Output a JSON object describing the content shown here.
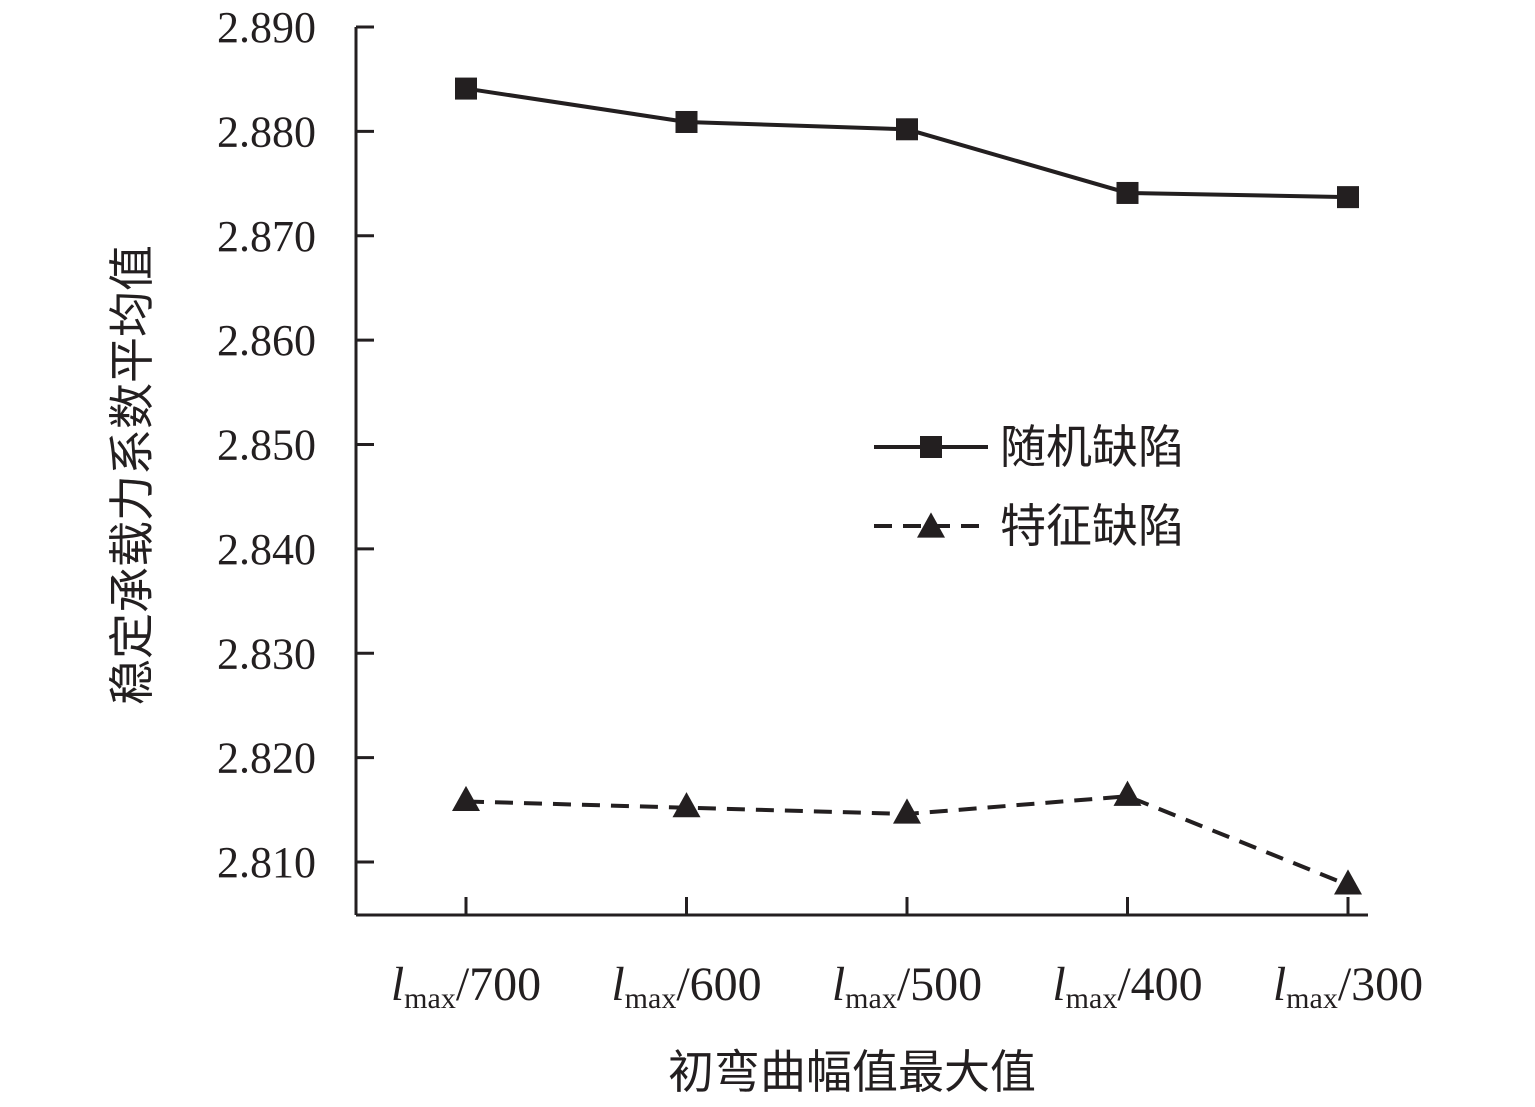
{
  "chart_data": {
    "type": "line",
    "title": "",
    "xlabel": "初弯曲幅值最大值",
    "ylabel": "稳定承载力系数平均值",
    "categories": [
      {
        "main": "l",
        "sub": "max",
        "tail": "/700"
      },
      {
        "main": "l",
        "sub": "max",
        "tail": "/600"
      },
      {
        "main": "l",
        "sub": "max",
        "tail": "/500"
      },
      {
        "main": "l",
        "sub": "max",
        "tail": "/400"
      },
      {
        "main": "l",
        "sub": "max",
        "tail": "/300"
      }
    ],
    "yticks": [
      "2.810",
      "2.820",
      "2.830",
      "2.840",
      "2.850",
      "2.860",
      "2.870",
      "2.880",
      "2.890"
    ],
    "ylim": [
      2.805,
      2.89
    ],
    "grid": false,
    "legend_position": "center-right",
    "series": [
      {
        "name": "随机缺陷",
        "values": [
          2.8841,
          2.8809,
          2.8802,
          2.8741,
          2.8737
        ],
        "line_style": "solid",
        "marker": "square"
      },
      {
        "name": "特征缺陷",
        "values": [
          2.8158,
          2.8152,
          2.8146,
          2.8163,
          2.8078
        ],
        "line_style": "dashed",
        "marker": "triangle"
      }
    ],
    "colors": {
      "ink": "#231f20",
      "background": "#ffffff"
    }
  }
}
